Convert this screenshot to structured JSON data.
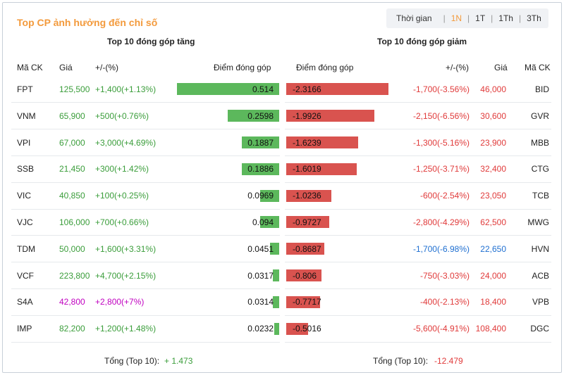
{
  "title": "Top CP ảnh hưởng đến chỉ số",
  "timeframe": {
    "label": "Thời gian",
    "options": [
      "1N",
      "1T",
      "1Th",
      "3Th"
    ],
    "active": "1N"
  },
  "gainers": {
    "subtitle": "Top 10 đóng góp tăng",
    "headers": {
      "code": "Mã CK",
      "price": "Giá",
      "change": "+/-(%)",
      "points": "Điểm đóng góp"
    },
    "rows": [
      {
        "code": "FPT",
        "price": "125,500",
        "change": "+1,400(+1.13%)",
        "points": "0.514",
        "value": 0.514,
        "color": "#3a9d3a"
      },
      {
        "code": "VNM",
        "price": "65,900",
        "change": "+500(+0.76%)",
        "points": "0.2598",
        "value": 0.2598,
        "color": "#3a9d3a"
      },
      {
        "code": "VPI",
        "price": "67,000",
        "change": "+3,000(+4.69%)",
        "points": "0.1887",
        "value": 0.1887,
        "color": "#3a9d3a"
      },
      {
        "code": "SSB",
        "price": "21,450",
        "change": "+300(+1.42%)",
        "points": "0.1886",
        "value": 0.1886,
        "color": "#3a9d3a"
      },
      {
        "code": "VIC",
        "price": "40,850",
        "change": "+100(+0.25%)",
        "points": "0.0969",
        "value": 0.0969,
        "color": "#3a9d3a"
      },
      {
        "code": "VJC",
        "price": "106,000",
        "change": "+700(+0.66%)",
        "points": "0.094",
        "value": 0.094,
        "color": "#3a9d3a"
      },
      {
        "code": "TDM",
        "price": "50,000",
        "change": "+1,600(+3.31%)",
        "points": "0.0451",
        "value": 0.0451,
        "color": "#3a9d3a"
      },
      {
        "code": "VCF",
        "price": "223,800",
        "change": "+4,700(+2.15%)",
        "points": "0.0317",
        "value": 0.0317,
        "color": "#3a9d3a"
      },
      {
        "code": "S4A",
        "price": "42,800",
        "change": "+2,800(+7%)",
        "points": "0.0314",
        "value": 0.0314,
        "color": "#c000c0"
      },
      {
        "code": "IMP",
        "price": "82,200",
        "change": "+1,200(+1.48%)",
        "points": "0.0232",
        "value": 0.0232,
        "color": "#3a9d3a"
      }
    ],
    "total_label": "Tổng (Top 10):",
    "total_value": "+ 1.473"
  },
  "losers": {
    "subtitle": "Top 10 đóng góp giảm",
    "headers": {
      "points": "Điểm đóng góp",
      "change": "+/-(%)",
      "price": "Giá",
      "code": "Mã CK"
    },
    "rows": [
      {
        "code": "BID",
        "price": "46,000",
        "change": "-1,700(-3.56%)",
        "points": "-2.3166",
        "value": 2.3166,
        "color": "#e03a3a"
      },
      {
        "code": "GVR",
        "price": "30,600",
        "change": "-2,150(-6.56%)",
        "points": "-1.9926",
        "value": 1.9926,
        "color": "#e03a3a"
      },
      {
        "code": "MBB",
        "price": "23,900",
        "change": "-1,300(-5.16%)",
        "points": "-1.6239",
        "value": 1.6239,
        "color": "#e03a3a"
      },
      {
        "code": "CTG",
        "price": "32,400",
        "change": "-1,250(-3.71%)",
        "points": "-1.6019",
        "value": 1.6019,
        "color": "#e03a3a"
      },
      {
        "code": "TCB",
        "price": "23,050",
        "change": "-600(-2.54%)",
        "points": "-1.0236",
        "value": 1.0236,
        "color": "#e03a3a"
      },
      {
        "code": "MWG",
        "price": "62,500",
        "change": "-2,800(-4.29%)",
        "points": "-0.9727",
        "value": 0.9727,
        "color": "#e03a3a"
      },
      {
        "code": "HVN",
        "price": "22,650",
        "change": "-1,700(-6.98%)",
        "points": "-0.8687",
        "value": 0.8687,
        "color": "#1f6fd1"
      },
      {
        "code": "ACB",
        "price": "24,000",
        "change": "-750(-3.03%)",
        "points": "-0.806",
        "value": 0.806,
        "color": "#e03a3a"
      },
      {
        "code": "VPB",
        "price": "18,400",
        "change": "-400(-2.13%)",
        "points": "-0.7717",
        "value": 0.7717,
        "color": "#e03a3a"
      },
      {
        "code": "DGC",
        "price": "108,400",
        "change": "-5,600(-4.91%)",
        "points": "-0.5016",
        "value": 0.5016,
        "color": "#e03a3a"
      }
    ],
    "total_label": "Tổng (Top 10):",
    "total_value": "-12.479"
  },
  "colors": {
    "accent": "#f39a3c",
    "up_bar": "#5cb85c",
    "down_bar": "#d9534f"
  }
}
